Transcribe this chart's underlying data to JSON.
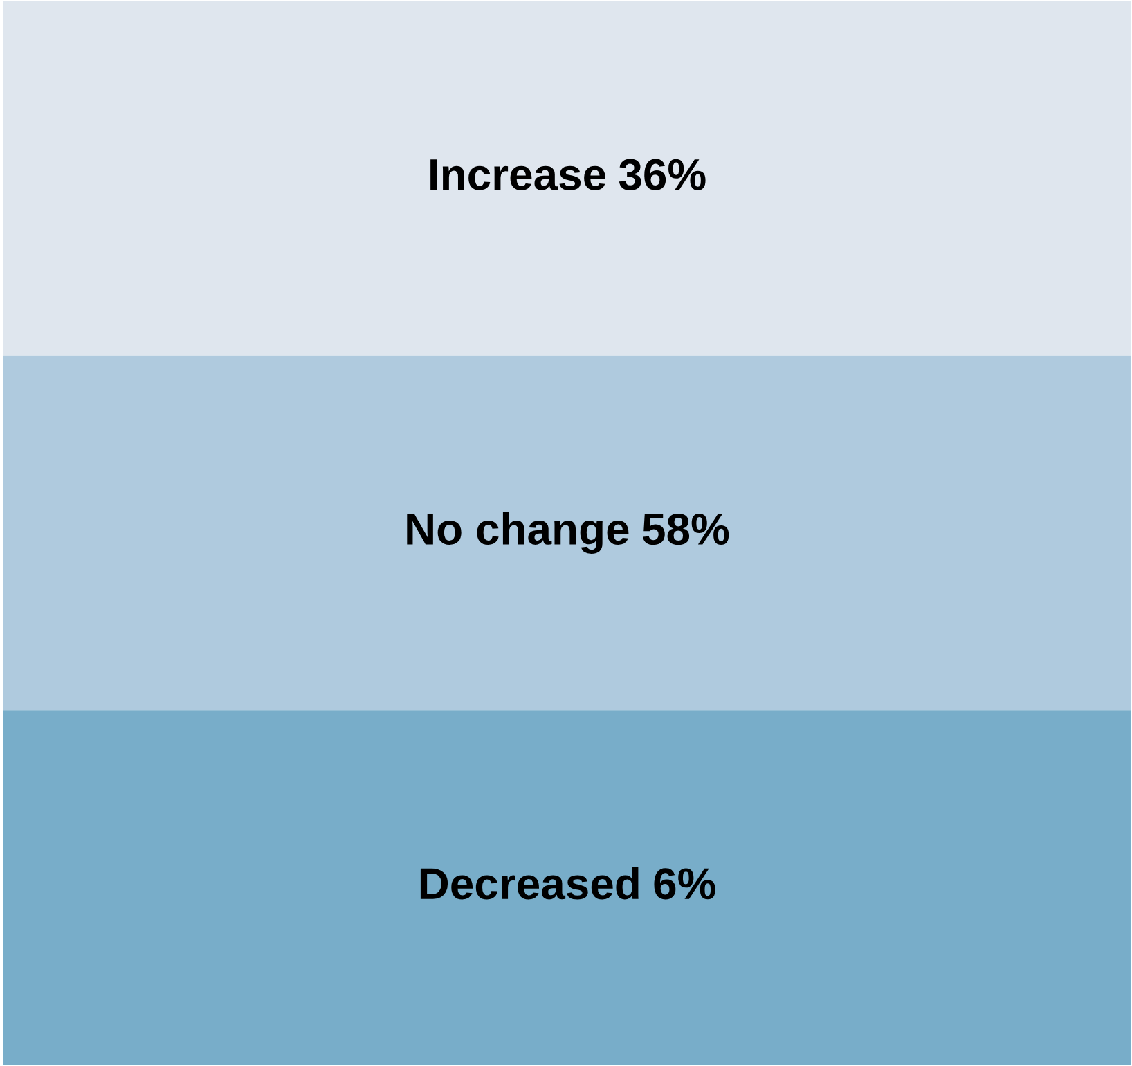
{
  "chart_data": {
    "type": "other",
    "categories": [
      "Increase",
      "No change",
      "Decreased"
    ],
    "values": [
      36,
      58,
      6
    ],
    "value_labels": [
      "36%",
      "58%",
      "6%"
    ],
    "colors": [
      "#dfe6ee",
      "#afcade",
      "#78adc9"
    ]
  }
}
